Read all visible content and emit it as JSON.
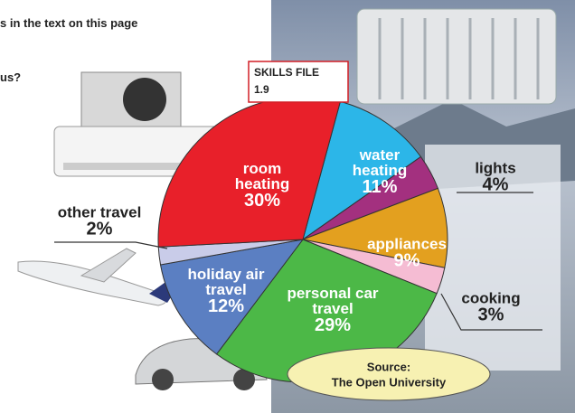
{
  "page_text": {
    "line1": "s in the text on this page",
    "line2": "us?"
  },
  "skills_file": {
    "title": "SKILLS FILE",
    "number": "1.9"
  },
  "source": {
    "label": "Source:",
    "name": "The Open University"
  },
  "chart_data": {
    "type": "pie",
    "categories": [
      "water heating",
      "lights",
      "appliances",
      "cooking",
      "personal car travel",
      "holiday air travel",
      "other travel",
      "room heating"
    ],
    "values": [
      11,
      4,
      9,
      3,
      29,
      12,
      2,
      30
    ],
    "value_labels": [
      "11%",
      "4%",
      "9%",
      "3%",
      "29%",
      "12%",
      "2%",
      "30%"
    ],
    "colors": [
      "#2cb6e8",
      "#a3307f",
      "#e3a01f",
      "#f5bcd3",
      "#4cb847",
      "#5b7fc2",
      "#c9cce9",
      "#e8202a"
    ]
  }
}
